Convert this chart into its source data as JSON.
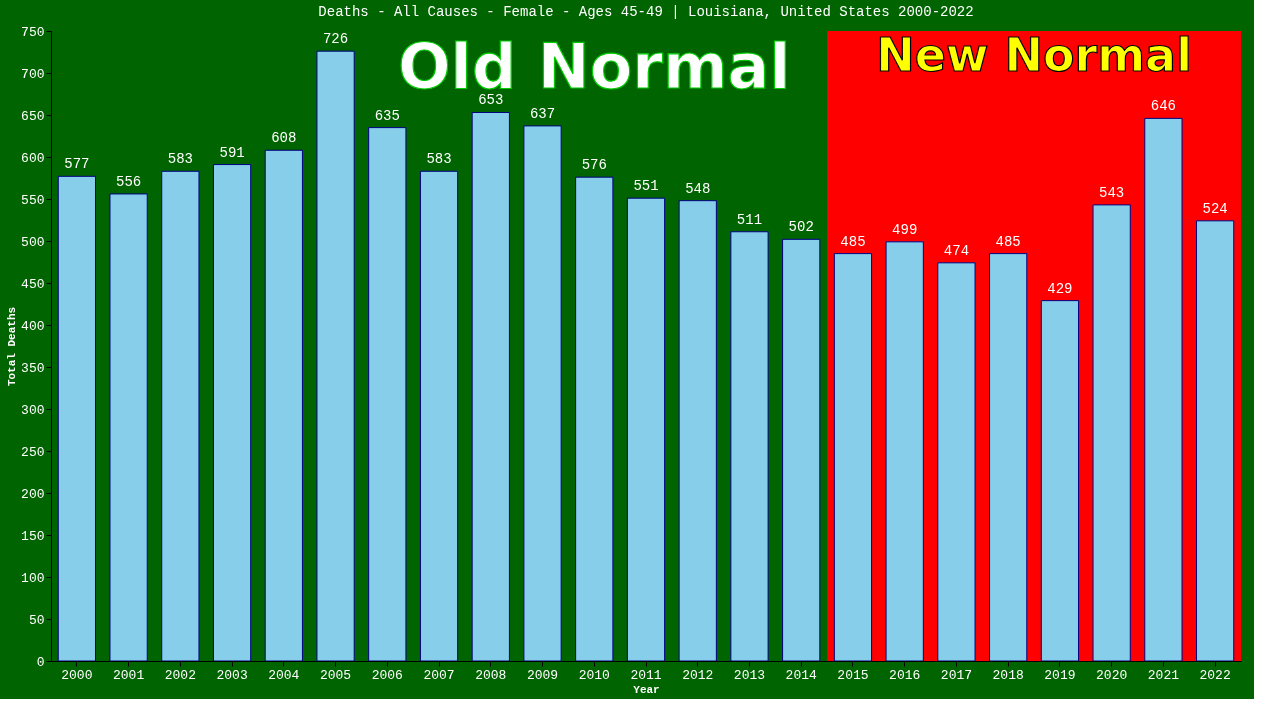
{
  "chart_data": {
    "type": "bar",
    "title": "Deaths - All Causes - Female - Ages 45-49 | Louisiana, United States 2000-2022",
    "xlabel": "Year",
    "ylabel": "Total Deaths",
    "categories": [
      "2000",
      "2001",
      "2002",
      "2003",
      "2004",
      "2005",
      "2006",
      "2007",
      "2008",
      "2009",
      "2010",
      "2011",
      "2012",
      "2013",
      "2014",
      "2015",
      "2016",
      "2017",
      "2018",
      "2019",
      "2020",
      "2021",
      "2022"
    ],
    "values": [
      577,
      556,
      583,
      591,
      608,
      726,
      635,
      583,
      653,
      637,
      576,
      551,
      548,
      511,
      502,
      485,
      499,
      474,
      485,
      429,
      543,
      646,
      524
    ],
    "color": "#87ceeb",
    "data_labels": true,
    "ylim": [
      0,
      750
    ],
    "yticks": [
      0,
      50,
      100,
      150,
      200,
      250,
      300,
      350,
      400,
      450,
      500,
      550,
      600,
      650,
      700,
      750
    ],
    "grid": false,
    "bands": [
      {
        "axis": "x",
        "from": "2000",
        "to": "2014",
        "label": "Old Normal",
        "color": "#006400"
      },
      {
        "axis": "x",
        "from": "2015",
        "to": "2022",
        "label": "New Normal",
        "color": "#ff0000"
      }
    ]
  }
}
